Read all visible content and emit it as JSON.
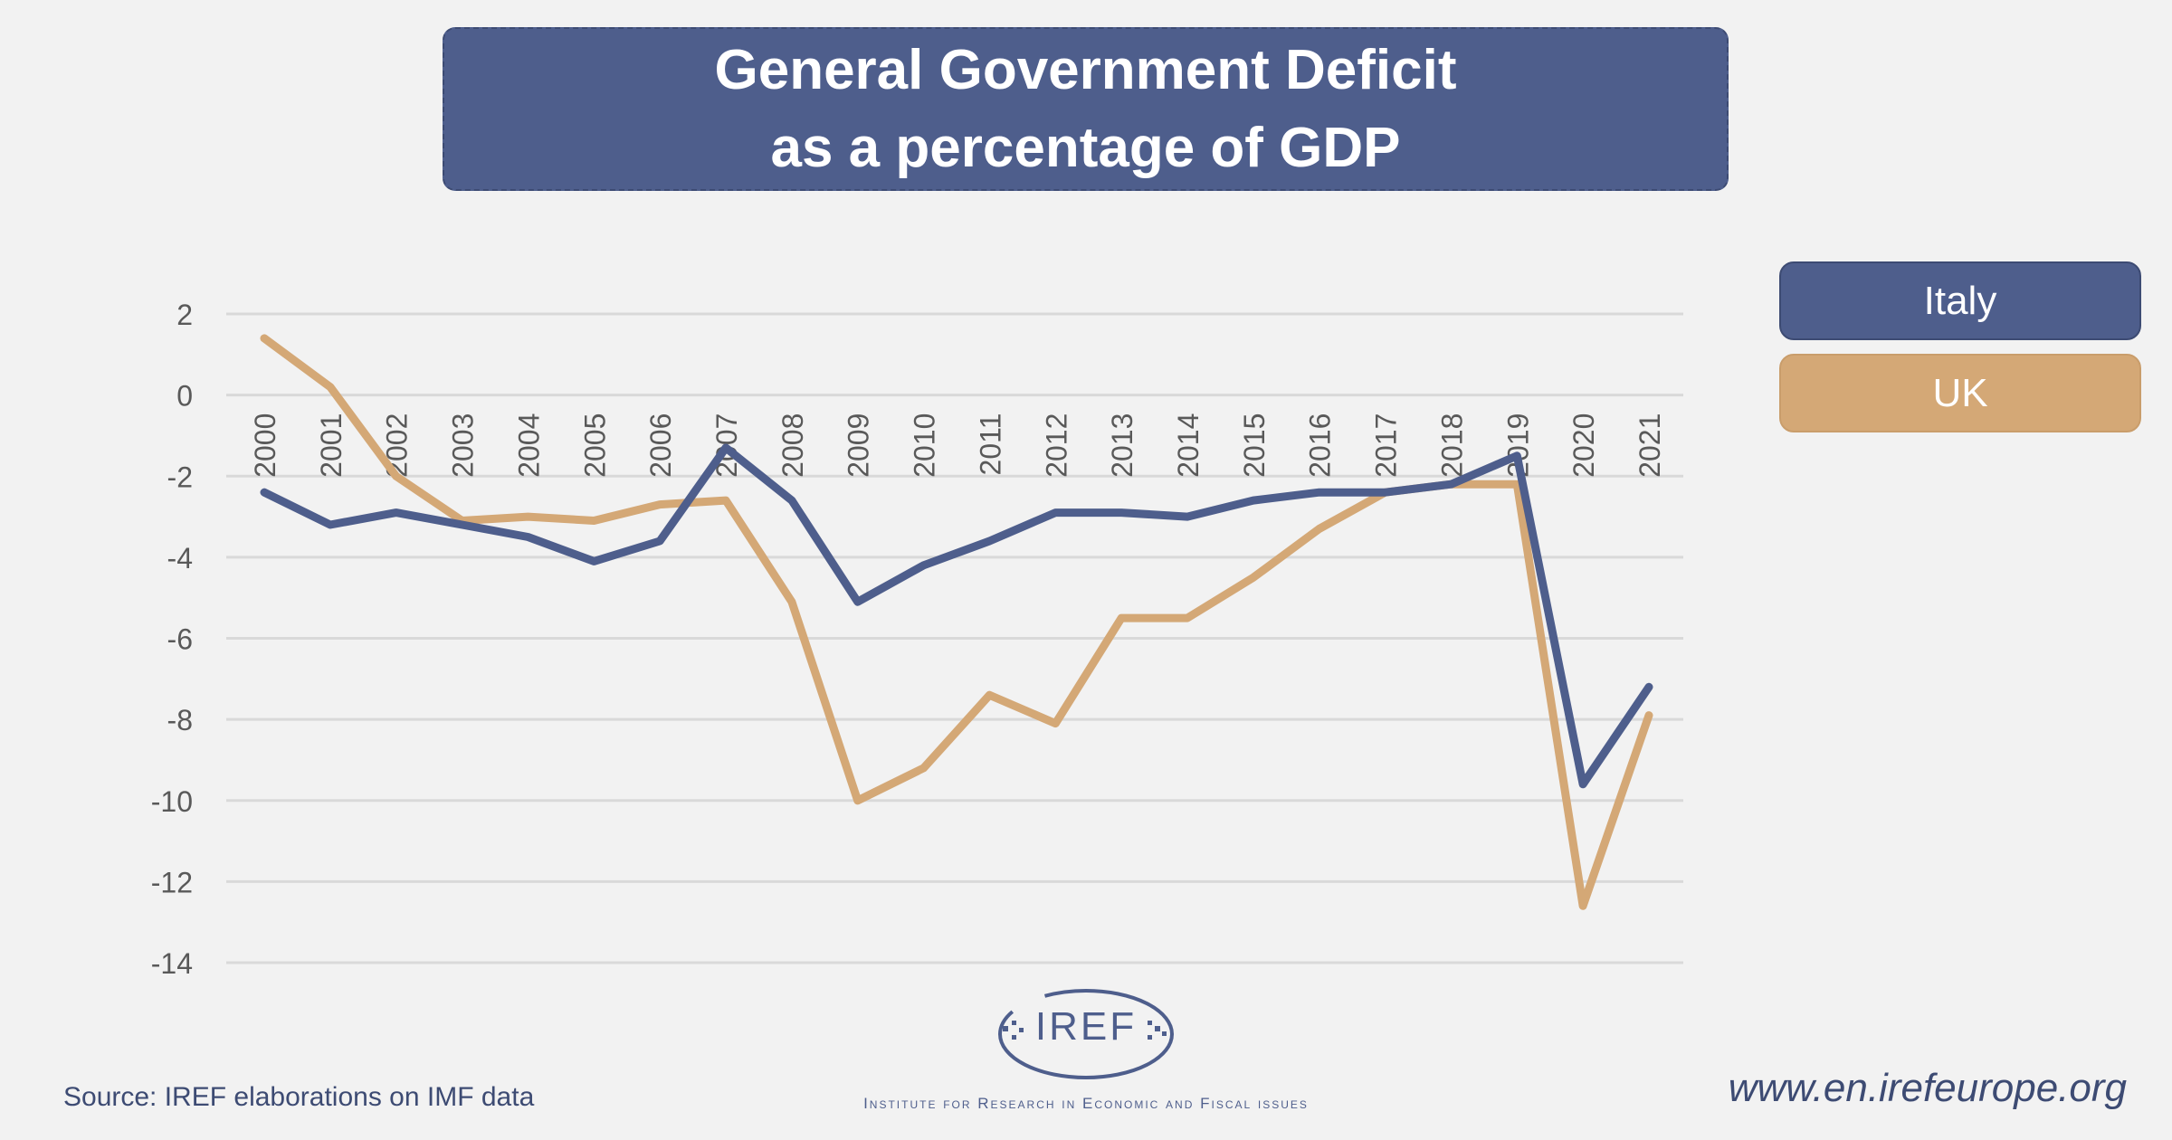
{
  "header": {
    "title_line1": "General Government Deficit",
    "title_line2": "as a percentage of GDP"
  },
  "legend": {
    "italy": "Italy",
    "uk": "UK"
  },
  "footer": {
    "source": "Source: IREF elaborations on IMF data",
    "website": "www.en.irefeurope.org",
    "logo_text": "IREF",
    "institute": "Institute for Research in Economic and Fiscal issues"
  },
  "colors": {
    "italy": "#4e5e8c",
    "uk": "#d4a876",
    "grid": "#d9d9d9",
    "axis_text": "#595959"
  },
  "chart_data": {
    "type": "line",
    "title": "General Government Deficit as a percentage of GDP",
    "xlabel": "",
    "ylabel": "",
    "ylim": [
      -14,
      2
    ],
    "yticks": [
      2,
      0,
      -2,
      -4,
      -6,
      -8,
      -10,
      -12,
      -14
    ],
    "grid": true,
    "legend_position": "right",
    "categories": [
      "2000",
      "2001",
      "2002",
      "2003",
      "2004",
      "2005",
      "2006",
      "2007",
      "2008",
      "2009",
      "2010",
      "2011",
      "2012",
      "2013",
      "2014",
      "2015",
      "2016",
      "2017",
      "2018",
      "2019",
      "2020",
      "2021"
    ],
    "series": [
      {
        "name": "Italy",
        "color": "#4e5e8c",
        "values": [
          -2.4,
          -3.2,
          -2.9,
          -3.2,
          -3.5,
          -4.1,
          -3.6,
          -1.3,
          -2.6,
          -5.1,
          -4.2,
          -3.6,
          -2.9,
          -2.9,
          -3.0,
          -2.6,
          -2.4,
          -2.4,
          -2.2,
          -1.5,
          -9.6,
          -7.2
        ]
      },
      {
        "name": "UK",
        "color": "#d4a876",
        "values": [
          1.4,
          0.2,
          -2.0,
          -3.1,
          -3.0,
          -3.1,
          -2.7,
          -2.6,
          -5.1,
          -10.0,
          -9.2,
          -7.4,
          -8.1,
          -5.5,
          -5.5,
          -4.5,
          -3.3,
          -2.4,
          -2.2,
          -2.2,
          -12.6,
          -7.9
        ]
      }
    ]
  }
}
